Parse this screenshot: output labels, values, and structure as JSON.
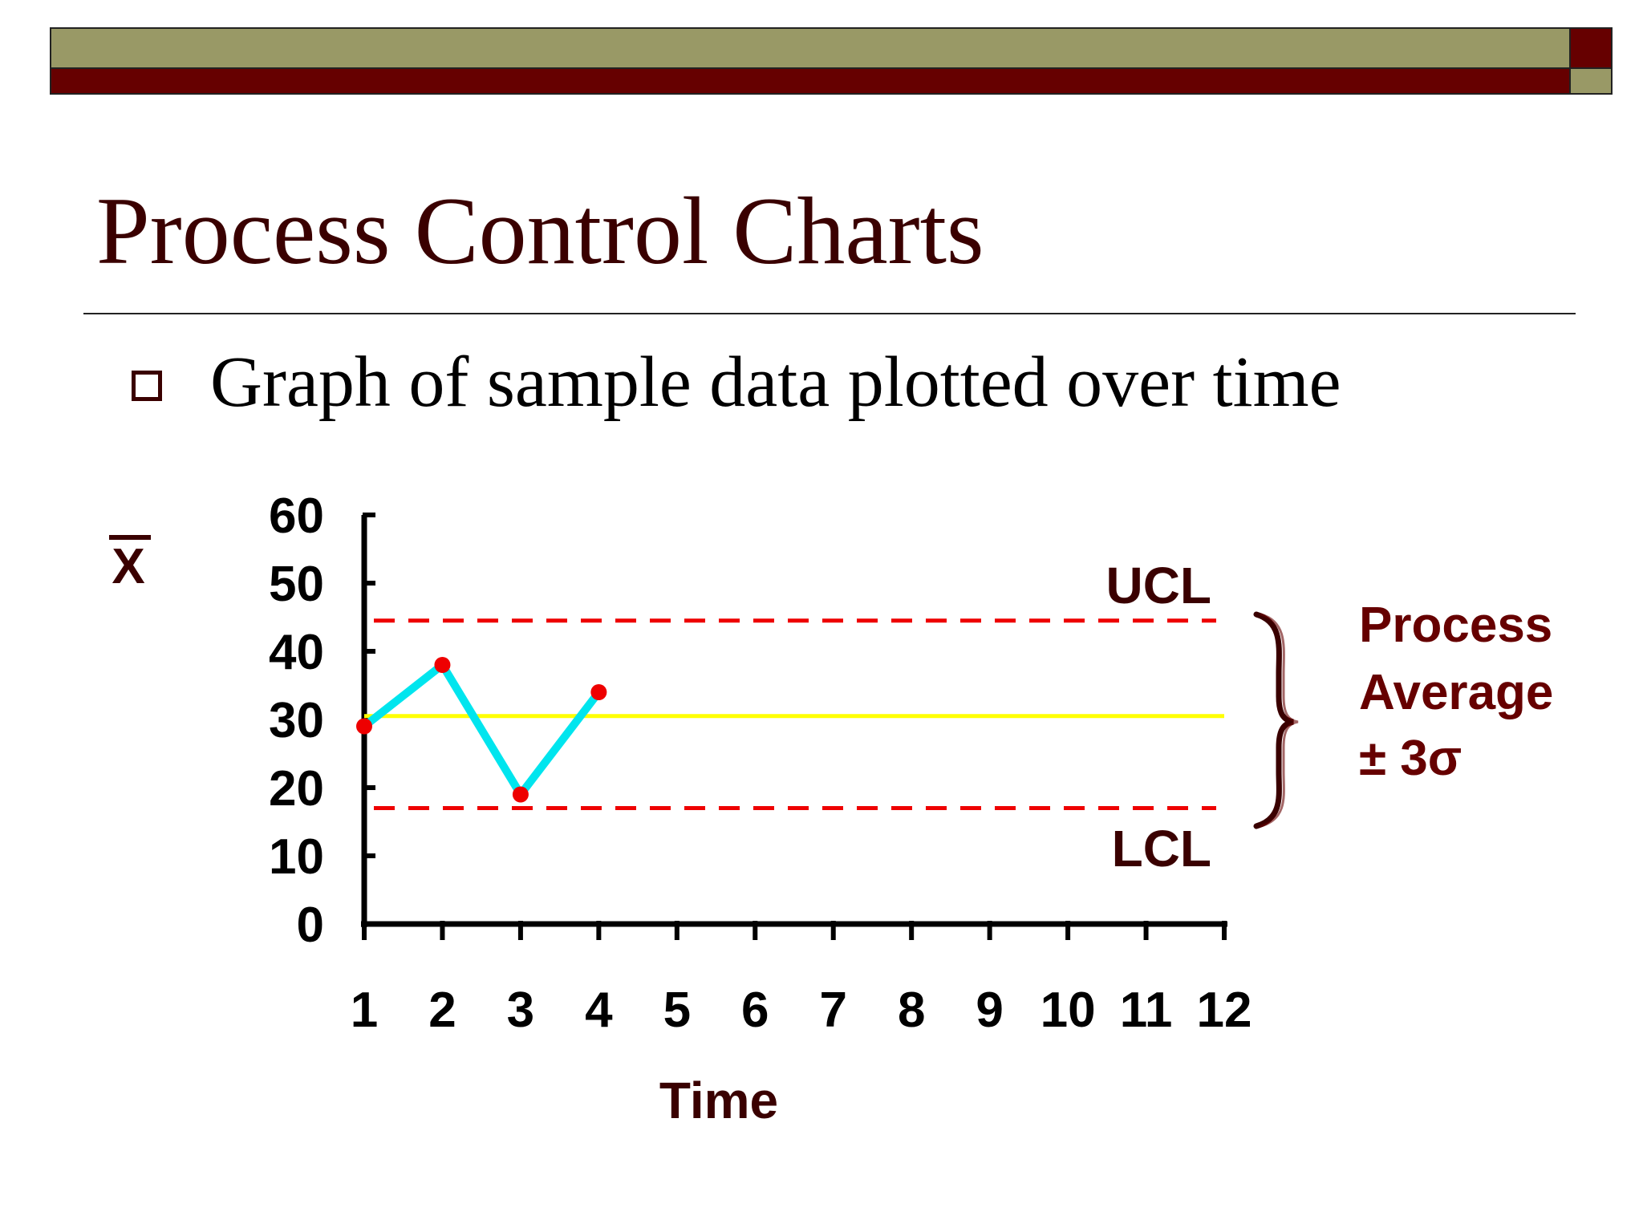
{
  "slide": {
    "title": "Process Control Charts",
    "bullet": "Graph of sample data plotted over time"
  },
  "colors": {
    "olive": "#999966",
    "maroon": "#660000",
    "title_text": "#3a0000",
    "data_line": "#00e5ee",
    "data_point": "#ee0000",
    "center_line": "#ffff00",
    "control_limit": "#ee0000"
  },
  "chart_data": {
    "type": "line",
    "ylabel": "X",
    "ylabel_note": "x-bar (overline)",
    "xlabel": "Time",
    "ylim": [
      0,
      60
    ],
    "yticks": [
      "0",
      "10",
      "20",
      "30",
      "40",
      "50",
      "60"
    ],
    "xticks": [
      "1",
      "2",
      "3",
      "4",
      "5",
      "6",
      "7",
      "8",
      "9",
      "10",
      "11",
      "12"
    ],
    "xlim": [
      1,
      12
    ],
    "series": [
      {
        "x": [
          1,
          2,
          3,
          4
        ],
        "values": [
          29,
          38,
          19,
          34
        ]
      }
    ],
    "center_line": 30.5,
    "ucl": {
      "label": "UCL",
      "value": 44.5
    },
    "lcl": {
      "label": "LCL",
      "value": 17
    },
    "annotation": {
      "line1": "Process",
      "line2": "Average",
      "line3": "± 3σ"
    }
  }
}
